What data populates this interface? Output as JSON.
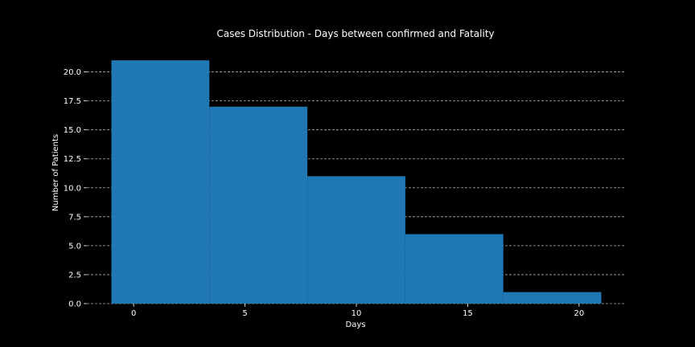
{
  "chart_data": {
    "type": "bar",
    "title": "Cases Distribution - Days between confirmed and Fatality",
    "xlabel": "Days",
    "ylabel": "Number of Patients",
    "bins": [
      {
        "start": -1,
        "end": 3.4,
        "value": 21
      },
      {
        "start": 3.4,
        "end": 7.8,
        "value": 17
      },
      {
        "start": 7.8,
        "end": 12.2,
        "value": 11
      },
      {
        "start": 12.2,
        "end": 16.6,
        "value": 6
      },
      {
        "start": 16.6,
        "end": 21,
        "value": 1
      }
    ],
    "xlim": [
      -2.1,
      22.1
    ],
    "ylim": [
      0,
      22.05
    ],
    "xticks": [
      0,
      5,
      10,
      15,
      20
    ],
    "xtick_labels": [
      "0",
      "5",
      "10",
      "15",
      "20"
    ],
    "yticks": [
      0,
      2.5,
      5,
      7.5,
      10,
      12.5,
      15,
      17.5,
      20
    ],
    "ytick_labels": [
      "0.0",
      "2.5",
      "5.0",
      "7.5",
      "10.0",
      "12.5",
      "15.0",
      "17.5",
      "20.0"
    ],
    "grid": "y-dashed",
    "bar_color": "#1f77b4",
    "background_color": "#000000"
  }
}
